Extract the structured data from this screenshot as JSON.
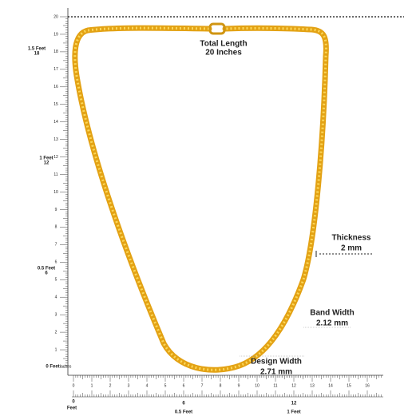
{
  "vertical_ruler": {
    "labels": [
      "1",
      "2",
      "3",
      "4",
      "5",
      "6",
      "7",
      "8",
      "9",
      "10",
      "11",
      "12",
      "13",
      "14",
      "15",
      "16",
      "17",
      "18",
      "19",
      "20"
    ],
    "feet_marks": [
      {
        "feet": "1.5 Feet",
        "inches": "18"
      },
      {
        "feet": "1 Feet",
        "inches": "12"
      },
      {
        "feet": "0.5 Feet",
        "inches": "6"
      }
    ],
    "origin": {
      "feet": "0 Feet",
      "inches": "Inches"
    }
  },
  "horizontal_ruler": {
    "labels": [
      "0",
      "1",
      "2",
      "3",
      "4",
      "5",
      "6",
      "7",
      "8",
      "9",
      "10",
      "11",
      "12",
      "13",
      "14",
      "15",
      "16"
    ],
    "feet_marks": [
      {
        "inches": "0",
        "feet": "Feet"
      },
      {
        "inches": "6",
        "feet": "0.5 Feet"
      },
      {
        "inches": "12",
        "feet": "1 Feet"
      }
    ]
  },
  "annotations": {
    "total_length": {
      "label": "Total Length",
      "value": "20 Inches"
    },
    "thickness": {
      "label": "Thickness",
      "value": "2 mm"
    },
    "band_width": {
      "label": "Band Width",
      "value": "2.12 mm"
    },
    "design_width": {
      "label": "Design Width",
      "value": "2.71 mm"
    }
  }
}
